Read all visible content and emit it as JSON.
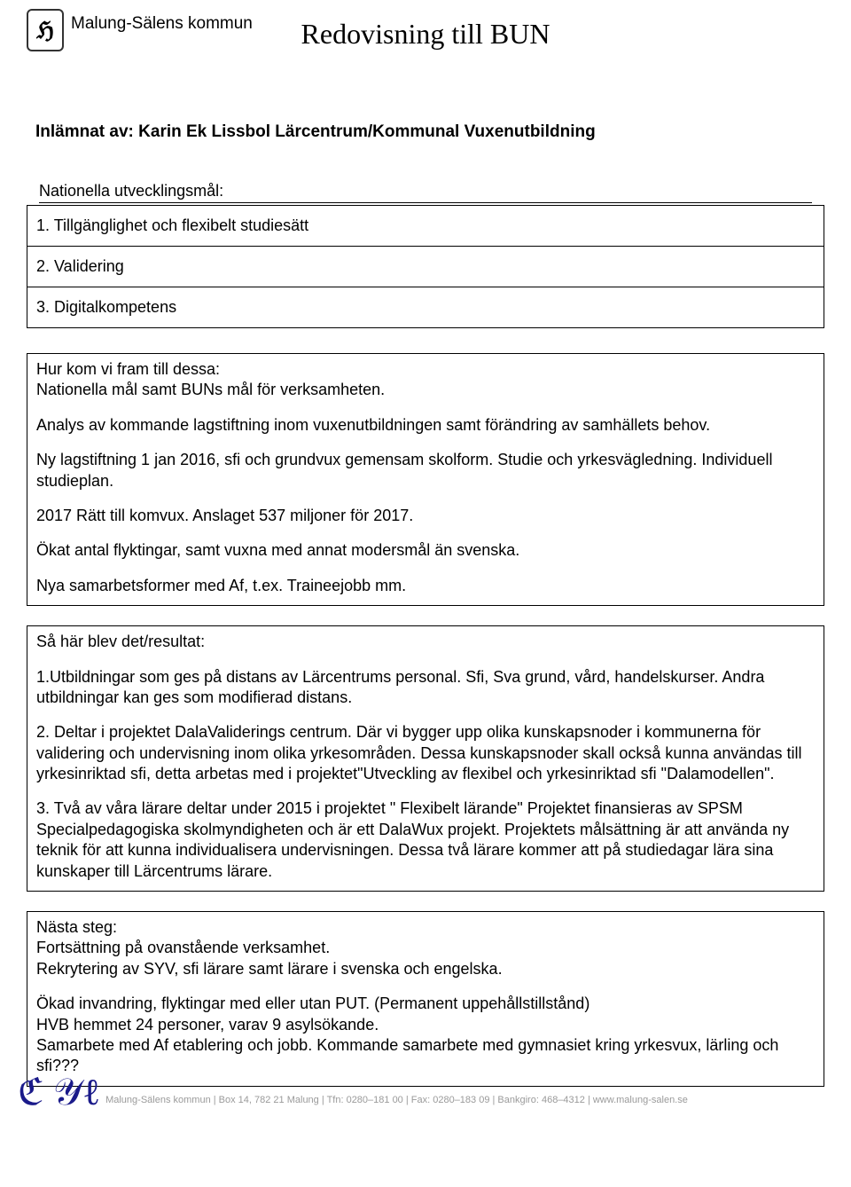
{
  "header": {
    "org_name": "Malung-Sälens kommun",
    "page_title": "Redovisning till BUN"
  },
  "submitted_by_label": "Inlämnat av:",
  "submitted_by_value": "Karin Ek Lissbol Lärcentrum/Kommunal Vuxenutbildning",
  "goals": {
    "label": "Nationella utvecklingsmål:",
    "items": [
      "1. Tillgänglighet och flexibelt studiesätt",
      "2. Validering",
      "3. Digitalkompetens"
    ]
  },
  "box_how": {
    "line1": "Hur kom vi fram till dessa:",
    "line2": "Nationella mål samt BUNs mål för verksamheten.",
    "p2": "Analys av kommande lagstiftning inom vuxenutbildningen samt förändring av samhällets behov.",
    "p3": "Ny lagstiftning 1 jan 2016, sfi och grundvux gemensam skolform. Studie och yrkesvägledning. Individuell studieplan.",
    "p4": "2017 Rätt till komvux. Anslaget 537 miljoner för 2017.",
    "p5": "Ökat antal flyktingar, samt vuxna med annat modersmål än svenska.",
    "p6": "Nya samarbetsformer med Af, t.ex. Traineejobb  mm."
  },
  "box_result": {
    "heading": "Så här blev det/resultat:",
    "p1": "1.Utbildningar som ges på distans av Lärcentrums personal. Sfi, Sva grund, vård, handelskurser. Andra utbildningar kan ges som modifierad distans.",
    "p2": "2. Deltar i projektet DalaValiderings centrum. Där vi bygger upp olika kunskapsnoder i kommunerna för validering och undervisning inom olika yrkesområden. Dessa kunskapsnoder skall också kunna användas till yrkesinriktad sfi, detta arbetas med i projektet\"Utveckling av flexibel och yrkesinriktad sfi \"Dalamodellen\".",
    "p3": "3. Två av våra lärare deltar under 2015 i projektet \" Flexibelt lärande\" Projektet finansieras av SPSM Specialpedagogiska skolmyndigheten och är ett DalaWux projekt. Projektets målsättning är att använda ny teknik för att kunna individualisera undervisningen. Dessa två lärare kommer att på studiedagar lära sina kunskaper till Lärcentrums lärare."
  },
  "box_next": {
    "l1": "Nästa steg:",
    "l2": "Fortsättning på ovanstående verksamhet.",
    "l3": "Rekrytering av SYV, sfi lärare samt lärare i svenska och engelska.",
    "l4": "Ökad invandring, flyktingar med eller utan PUT. (Permanent uppehållstillstånd)",
    "l5": "HVB hemmet 24 personer, varav 9 asylsökande.",
    "l6": "Samarbete med Af etablering och jobb. Kommande samarbete med gymnasiet kring yrkesvux, lärling och sfi???"
  },
  "footer": {
    "text": "Malung-Sälens kommun | Box 14, 782 21 Malung | Tfn: 0280–181 00 | Fax: 0280–183 09 | Bankgiro: 468–4312 | www.malung-salen.se"
  }
}
